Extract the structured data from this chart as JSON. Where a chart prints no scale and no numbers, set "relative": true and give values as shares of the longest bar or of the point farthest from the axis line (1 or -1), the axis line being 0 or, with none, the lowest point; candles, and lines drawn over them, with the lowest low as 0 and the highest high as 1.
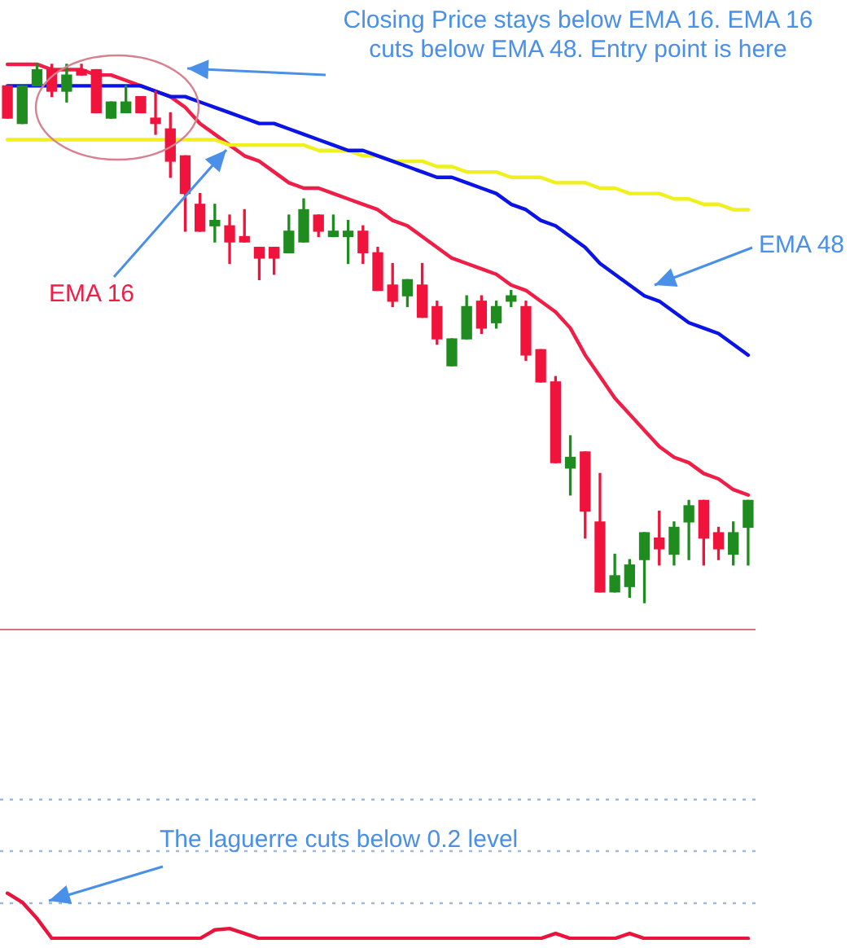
{
  "chart_data": [
    {
      "type": "candlestick",
      "relative": true,
      "categories": [
        null,
        null,
        null,
        null,
        null,
        null,
        null,
        null,
        null,
        null,
        null,
        null,
        null,
        null,
        null,
        null,
        null,
        null,
        null,
        null,
        null,
        null,
        null,
        null,
        null,
        null,
        null,
        null,
        null,
        null,
        null,
        null,
        null,
        null,
        null,
        null,
        null,
        null,
        null,
        null,
        null,
        null,
        null,
        null,
        null,
        null,
        null,
        null,
        null,
        null,
        null
      ],
      "ohlc": [
        [
          0.96,
          0.96,
          0.9,
          0.9
        ],
        [
          0.89,
          0.96,
          0.89,
          0.96
        ],
        [
          0.96,
          1.0,
          0.96,
          0.99
        ],
        [
          0.99,
          1.0,
          0.94,
          0.95
        ],
        [
          0.95,
          1.0,
          0.93,
          0.98
        ],
        [
          0.99,
          1.0,
          0.98,
          0.98
        ],
        [
          0.99,
          0.99,
          0.91,
          0.91
        ],
        [
          0.9,
          0.93,
          0.9,
          0.93
        ],
        [
          0.91,
          0.96,
          0.91,
          0.93
        ],
        [
          0.94,
          0.94,
          0.91,
          0.91
        ],
        [
          0.9,
          0.95,
          0.87,
          0.89
        ],
        [
          0.88,
          0.91,
          0.79,
          0.82
        ],
        [
          0.83,
          0.83,
          0.69,
          0.76
        ],
        [
          0.74,
          0.76,
          0.69,
          0.69
        ],
        [
          0.7,
          0.74,
          0.67,
          0.71
        ],
        [
          0.7,
          0.72,
          0.63,
          0.67
        ],
        [
          0.68,
          0.73,
          0.67,
          0.67
        ],
        [
          0.66,
          0.66,
          0.6,
          0.64
        ],
        [
          0.66,
          0.66,
          0.61,
          0.64
        ],
        [
          0.65,
          0.72,
          0.65,
          0.69
        ],
        [
          0.67,
          0.75,
          0.67,
          0.73
        ],
        [
          0.72,
          0.72,
          0.68,
          0.69
        ],
        [
          0.68,
          0.72,
          0.68,
          0.69
        ],
        [
          0.68,
          0.71,
          0.63,
          0.69
        ],
        [
          0.69,
          0.7,
          0.63,
          0.65
        ],
        [
          0.65,
          0.66,
          0.58,
          0.58
        ],
        [
          0.59,
          0.63,
          0.55,
          0.56
        ],
        [
          0.57,
          0.6,
          0.55,
          0.6
        ],
        [
          0.59,
          0.63,
          0.53,
          0.53
        ],
        [
          0.55,
          0.56,
          0.48,
          0.49
        ],
        [
          0.44,
          0.49,
          0.44,
          0.49
        ],
        [
          0.49,
          0.57,
          0.49,
          0.55
        ],
        [
          0.56,
          0.57,
          0.5,
          0.51
        ],
        [
          0.52,
          0.56,
          0.51,
          0.55
        ],
        [
          0.56,
          0.58,
          0.55,
          0.57
        ],
        [
          0.55,
          0.56,
          0.45,
          0.46
        ],
        [
          0.47,
          0.47,
          0.41,
          0.41
        ],
        [
          0.41,
          0.42,
          0.26,
          0.26
        ],
        [
          0.25,
          0.31,
          0.2,
          0.27
        ],
        [
          0.28,
          0.28,
          0.12,
          0.17
        ],
        [
          0.15,
          0.24,
          0.02,
          0.02
        ],
        [
          0.02,
          0.09,
          0.02,
          0.05
        ],
        [
          0.03,
          0.08,
          0.01,
          0.07
        ],
        [
          0.08,
          0.13,
          0.0,
          0.13
        ],
        [
          0.12,
          0.17,
          0.07,
          0.1
        ],
        [
          0.09,
          0.15,
          0.07,
          0.14
        ],
        [
          0.15,
          0.19,
          0.08,
          0.18
        ],
        [
          0.19,
          0.19,
          0.07,
          0.12
        ],
        [
          0.13,
          0.14,
          0.08,
          0.1
        ],
        [
          0.09,
          0.15,
          0.07,
          0.13
        ],
        [
          0.14,
          0.19,
          0.07,
          0.19
        ]
      ],
      "colors": [
        "#f0143c",
        "#1e8c1e",
        "#1e8c1e",
        "#f0143c",
        "#1e8c1e",
        "#f0143c",
        "#f0143c",
        "#1e8c1e",
        "#1e8c1e",
        "#f0143c",
        "#f0143c",
        "#f0143c",
        "#f0143c",
        "#f0143c",
        "#1e8c1e",
        "#f0143c",
        "#f0143c",
        "#f0143c",
        "#f0143c",
        "#1e8c1e",
        "#1e8c1e",
        "#f0143c",
        "#1e8c1e",
        "#1e8c1e",
        "#f0143c",
        "#f0143c",
        "#f0143c",
        "#1e8c1e",
        "#f0143c",
        "#f0143c",
        "#1e8c1e",
        "#1e8c1e",
        "#f0143c",
        "#1e8c1e",
        "#1e8c1e",
        "#f0143c",
        "#f0143c",
        "#f0143c",
        "#1e8c1e",
        "#f0143c",
        "#f0143c",
        "#1e8c1e",
        "#1e8c1e",
        "#1e8c1e",
        "#f0143c",
        "#1e8c1e",
        "#1e8c1e",
        "#f0143c",
        "#f0143c",
        "#1e8c1e",
        "#1e8c1e"
      ],
      "series": [
        {
          "name": "EMA 16",
          "type": "line",
          "color": "#f01e46",
          "values": [
            1.0,
            1.0,
            1.0,
            0.99,
            0.99,
            0.99,
            0.98,
            0.98,
            0.97,
            0.96,
            0.95,
            0.94,
            0.92,
            0.89,
            0.87,
            0.85,
            0.83,
            0.82,
            0.8,
            0.78,
            0.77,
            0.77,
            0.76,
            0.75,
            0.74,
            0.73,
            0.71,
            0.7,
            0.68,
            0.66,
            0.64,
            0.63,
            0.62,
            0.61,
            0.59,
            0.58,
            0.56,
            0.54,
            0.51,
            0.46,
            0.42,
            0.38,
            0.35,
            0.32,
            0.29,
            0.27,
            0.26,
            0.24,
            0.23,
            0.21,
            0.2
          ]
        },
        {
          "name": "EMA 48",
          "type": "line",
          "color": "#0a14e6",
          "values": [
            0.96,
            0.96,
            0.96,
            0.96,
            0.96,
            0.96,
            0.96,
            0.96,
            0.96,
            0.96,
            0.95,
            0.94,
            0.94,
            0.93,
            0.92,
            0.91,
            0.9,
            0.89,
            0.89,
            0.88,
            0.87,
            0.86,
            0.85,
            0.84,
            0.84,
            0.83,
            0.82,
            0.81,
            0.8,
            0.79,
            0.79,
            0.78,
            0.77,
            0.76,
            0.74,
            0.73,
            0.71,
            0.7,
            0.68,
            0.66,
            0.63,
            0.61,
            0.59,
            0.57,
            0.56,
            0.54,
            0.52,
            0.51,
            0.5,
            0.48,
            0.46
          ]
        },
        {
          "type": "line",
          "color": "#f0f01e",
          "values": [
            0.86,
            0.86,
            0.86,
            0.86,
            0.86,
            0.86,
            0.86,
            0.86,
            0.86,
            0.86,
            0.86,
            0.86,
            0.86,
            0.86,
            0.86,
            0.85,
            0.85,
            0.85,
            0.85,
            0.85,
            0.85,
            0.84,
            0.84,
            0.84,
            0.83,
            0.83,
            0.82,
            0.82,
            0.82,
            0.81,
            0.81,
            0.8,
            0.8,
            0.8,
            0.79,
            0.79,
            0.79,
            0.78,
            0.78,
            0.78,
            0.77,
            0.77,
            0.76,
            0.76,
            0.76,
            0.75,
            0.75,
            0.74,
            0.74,
            0.73,
            0.73
          ]
        }
      ],
      "ref_lines": [
        {
          "axis": "y",
          "value": -0.05,
          "color": "#e07080"
        }
      ],
      "annotations": [
        "Closing Price stays below EMA 16. EMA 16 cuts below EMA 48. Entry point is here"
      ]
    },
    {
      "type": "line",
      "relative": true,
      "color": "#e8143c",
      "categories": [
        null,
        null,
        null,
        null,
        null,
        null,
        null,
        null,
        null,
        null,
        null,
        null,
        null,
        null,
        null,
        null,
        null,
        null,
        null,
        null,
        null,
        null,
        null,
        null,
        null,
        null,
        null,
        null,
        null,
        null,
        null,
        null,
        null,
        null,
        null,
        null,
        null,
        null,
        null,
        null,
        null,
        null,
        null,
        null,
        null,
        null,
        null,
        null,
        null,
        null,
        null
      ],
      "values": [
        1.0,
        0.8,
        0.44,
        0.0,
        0.0,
        0.0,
        0.0,
        0.0,
        0.0,
        0.0,
        0.0,
        0.0,
        0.0,
        0.0,
        0.19,
        0.22,
        0.11,
        0.0,
        0.0,
        0.0,
        0.0,
        0.0,
        0.0,
        0.0,
        0.0,
        0.0,
        0.0,
        0.0,
        0.0,
        0.0,
        0.0,
        0.0,
        0.0,
        0.0,
        0.0,
        0.0,
        0.0,
        0.11,
        0.0,
        0.0,
        0.0,
        0.0,
        0.11,
        0.0,
        0.0,
        0.0,
        0.0,
        0.0,
        0.0,
        0.0,
        0.0
      ],
      "ref_lines": [
        {
          "axis": "y",
          "value": 3.07,
          "color": "#a0b8dc",
          "line_style": "dotted"
        },
        {
          "axis": "y",
          "value": 1.93,
          "color": "#a0b8dc",
          "line_style": "dotted"
        },
        {
          "axis": "y",
          "value": 0.78,
          "color": "#a0b8dc",
          "line_style": "dotted"
        }
      ],
      "annotations": [
        "The laguerre cuts below 0.2 level"
      ]
    }
  ]
}
